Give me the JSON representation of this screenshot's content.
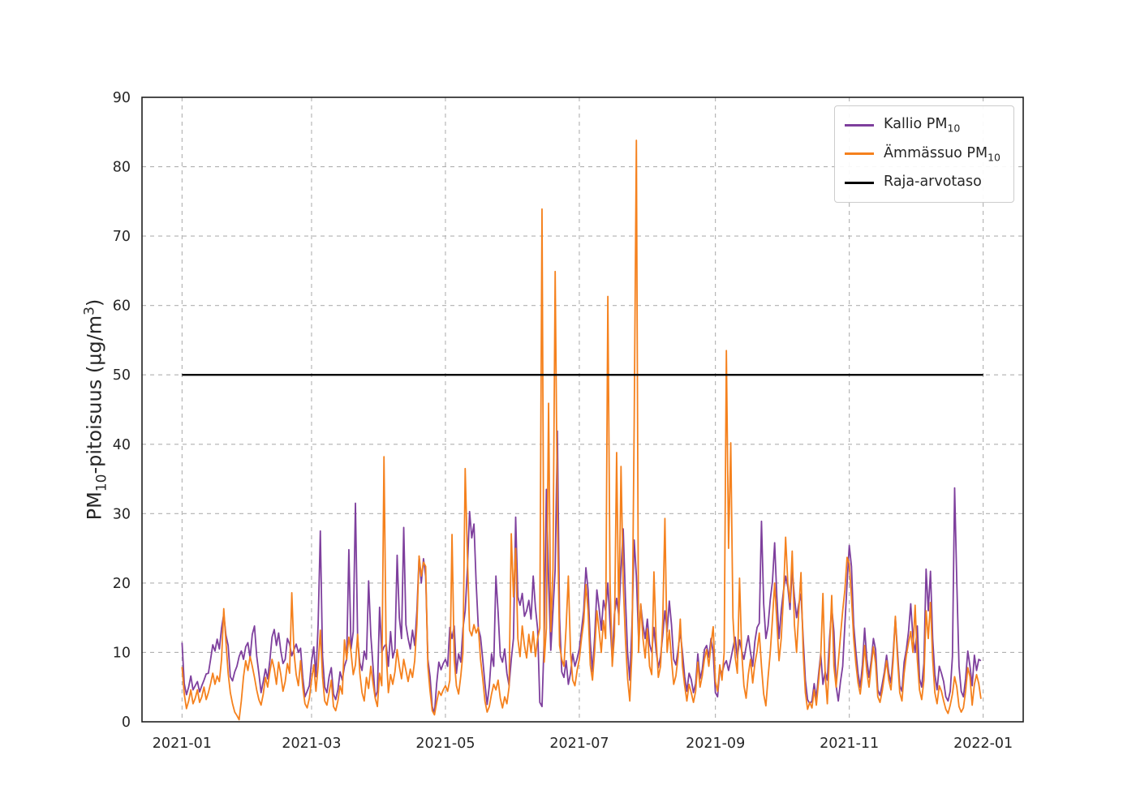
{
  "figure": {
    "background": "#ffffff"
  },
  "ylabel": {
    "pre": "PM",
    "sub": "10",
    "mid": "-pitoisuus (µg/m",
    "sup": "3",
    "post": ")"
  },
  "legend": {
    "position": "upper right",
    "items": [
      {
        "label_pre": "Kallio PM",
        "label_sub": "10",
        "color": "#7e3f9d"
      },
      {
        "label_pre": "Ämmässuo PM",
        "label_sub": "10",
        "color": "#f5811d"
      },
      {
        "label_pre": "Raja-arvotaso",
        "label_sub": "",
        "color": "#000000"
      }
    ]
  },
  "chart_data": {
    "type": "line",
    "title": "",
    "xlabel": "",
    "ylabel": "PM10-pitoisuus (µg/m3)",
    "grid": true,
    "grid_style": "dashed",
    "grid_color": "#b0b0b0",
    "spine_color": "#1f1f1f",
    "tick_color": "#262626",
    "ylim": [
      0,
      90
    ],
    "xlim_days": [
      -18.25,
      383.25
    ],
    "y_ticks": [
      0,
      10,
      20,
      30,
      40,
      50,
      60,
      70,
      80,
      90
    ],
    "x_ticks": [
      {
        "label": "2021-01",
        "day": 0
      },
      {
        "label": "2021-03",
        "day": 59
      },
      {
        "label": "2021-05",
        "day": 120
      },
      {
        "label": "2021-07",
        "day": 181
      },
      {
        "label": "2021-09",
        "day": 243
      },
      {
        "label": "2021-11",
        "day": 304
      },
      {
        "label": "2022-01",
        "day": 365
      }
    ],
    "x_unit": "days since 2021-01-01, daily values",
    "limit_line": {
      "name": "Raja-arvotaso",
      "value": 50,
      "color": "#000000",
      "x_span_days": [
        0,
        365
      ]
    },
    "series": [
      {
        "name": "Kallio PM10",
        "color": "#7e3f9d",
        "linewidth": 1.8,
        "values": [
          11.4,
          5.5,
          3.9,
          5.0,
          6.6,
          4.6,
          5.2,
          5.8,
          4.3,
          5.2,
          6.0,
          6.9,
          7.0,
          9.0,
          11.1,
          10.2,
          11.9,
          10.5,
          13.5,
          15.5,
          12.5,
          11.0,
          6.5,
          5.9,
          7.2,
          8.0,
          9.4,
          10.2,
          9.0,
          10.8,
          11.4,
          9.2,
          12.6,
          13.8,
          9.5,
          7.0,
          4.2,
          5.8,
          7.6,
          6.2,
          8.8,
          12.2,
          13.3,
          11.0,
          12.8,
          10.2,
          8.4,
          9.0,
          12.0,
          11.2,
          9.5,
          10.4,
          11.2,
          10.0,
          10.6,
          6.4,
          3.6,
          4.4,
          5.2,
          8.7,
          10.8,
          6.5,
          14.0,
          27.5,
          9.5,
          5.0,
          4.2,
          6.5,
          7.8,
          4.0,
          3.2,
          4.6,
          7.2,
          6.0,
          8.0,
          9.0,
          24.8,
          10.5,
          13.0,
          31.5,
          12.0,
          8.5,
          7.4,
          10.2,
          9.0,
          20.3,
          12.5,
          8.0,
          3.5,
          4.4,
          16.5,
          10.0,
          10.8,
          11.2,
          8.0,
          13.0,
          9.2,
          10.5,
          24.0,
          15.0,
          12.0,
          28.0,
          14.0,
          12.0,
          10.5,
          13.2,
          11.0,
          16.0,
          23.8,
          20.0,
          23.5,
          21.0,
          9.0,
          6.5,
          2.2,
          1.2,
          5.5,
          8.6,
          7.5,
          8.4,
          9.0,
          8.0,
          13.6,
          12.0,
          13.8,
          7.0,
          9.8,
          8.6,
          13.5,
          16.0,
          22.0,
          30.3,
          26.5,
          28.5,
          20.0,
          13.5,
          12.2,
          9.0,
          5.5,
          2.5,
          5.2,
          9.8,
          8.0,
          21.0,
          15.8,
          9.5,
          8.6,
          10.5,
          7.0,
          5.2,
          9.0,
          12.0,
          29.5,
          18.0,
          16.8,
          18.5,
          15.2,
          16.0,
          17.5,
          14.8,
          21.0,
          16.5,
          13.4,
          2.8,
          2.2,
          12.0,
          33.5,
          20.5,
          10.3,
          16.0,
          22.0,
          41.9,
          15.0,
          7.2,
          6.4,
          8.8,
          5.4,
          7.0,
          9.8,
          8.0,
          9.1,
          10.5,
          13.2,
          16.0,
          22.2,
          19.0,
          11.5,
          7.2,
          12.3,
          19.0,
          16.4,
          13.2,
          17.5,
          16.0,
          20.0,
          14.2,
          9.0,
          15.5,
          17.8,
          15.3,
          22.0,
          27.8,
          18.0,
          10.0,
          6.0,
          14.0,
          26.2,
          21.0,
          12.0,
          16.8,
          14.0,
          12.0,
          14.8,
          11.2,
          10.0,
          13.6,
          10.2,
          7.8,
          9.4,
          12.4,
          16.0,
          13.0,
          17.4,
          14.0,
          9.0,
          8.2,
          10.4,
          13.0,
          10.0,
          6.5,
          4.4,
          7.0,
          6.1,
          4.2,
          5.5,
          9.8,
          6.2,
          7.5,
          10.4,
          11.0,
          9.3,
          12.0,
          10.0,
          4.2,
          3.6,
          7.6,
          7.0,
          8.2,
          8.8,
          7.4,
          9.0,
          10.6,
          12.2,
          9.2,
          11.8,
          10.2,
          9.0,
          10.8,
          12.4,
          10.0,
          8.0,
          11.6,
          13.6,
          14.2,
          28.9,
          17.0,
          12.0,
          13.8,
          17.6,
          20.2,
          25.8,
          18.0,
          12.0,
          16.0,
          18.8,
          21.0,
          19.4,
          16.2,
          22.0,
          18.0,
          15.0,
          17.0,
          18.4,
          12.0,
          6.0,
          3.2,
          2.6,
          3.0,
          5.5,
          3.4,
          6.8,
          9.8,
          5.4,
          7.2,
          6.0,
          12.0,
          16.5,
          13.0,
          5.2,
          3.0,
          5.8,
          8.0,
          14.0,
          20.0,
          25.4,
          22.4,
          14.0,
          10.2,
          7.0,
          5.0,
          8.2,
          13.5,
          9.0,
          6.4,
          8.8,
          12.0,
          10.4,
          4.6,
          3.8,
          5.4,
          7.2,
          9.6,
          7.0,
          5.6,
          9.8,
          15.0,
          10.0,
          5.2,
          4.4,
          8.6,
          10.4,
          13.0,
          17.0,
          12.2,
          10.0,
          13.8,
          6.2,
          5.0,
          8.4,
          22.0,
          16.0,
          21.7,
          12.0,
          6.8,
          4.6,
          8.0,
          7.0,
          5.8,
          3.6,
          3.0,
          4.4,
          9.4,
          33.7,
          20.0,
          8.0,
          4.4,
          3.6,
          6.2,
          10.2,
          8.0,
          5.2,
          9.6,
          7.4,
          9.0,
          8.8
        ]
      },
      {
        "name": "Ämmässuo PM10",
        "color": "#f5811d",
        "linewidth": 1.8,
        "values": [
          7.9,
          4.0,
          1.9,
          3.0,
          4.6,
          2.6,
          3.4,
          4.6,
          2.8,
          3.6,
          5.0,
          3.2,
          4.2,
          5.5,
          7.0,
          5.4,
          6.6,
          5.8,
          9.0,
          16.3,
          11.5,
          7.0,
          4.2,
          2.6,
          1.4,
          0.9,
          0.3,
          3.0,
          6.5,
          8.8,
          7.4,
          9.4,
          8.0,
          6.4,
          4.6,
          3.2,
          2.4,
          4.0,
          6.4,
          5.0,
          7.2,
          9.0,
          7.6,
          5.4,
          8.6,
          6.8,
          4.4,
          5.8,
          8.4,
          7.0,
          18.6,
          10.0,
          6.8,
          5.2,
          8.8,
          5.0,
          2.6,
          2.0,
          3.4,
          6.0,
          8.2,
          4.4,
          8.0,
          13.2,
          6.5,
          3.0,
          2.4,
          4.2,
          6.0,
          2.2,
          1.6,
          3.0,
          5.2,
          4.0,
          11.8,
          9.0,
          12.2,
          10.0,
          6.8,
          8.2,
          12.6,
          7.0,
          4.2,
          3.0,
          6.4,
          4.8,
          8.0,
          5.6,
          3.4,
          2.2,
          7.0,
          5.2,
          38.2,
          10.0,
          4.2,
          6.8,
          5.4,
          7.2,
          10.4,
          8.0,
          6.2,
          9.0,
          7.4,
          5.8,
          7.6,
          6.4,
          8.8,
          14.0,
          23.9,
          21.0,
          23.0,
          22.4,
          8.0,
          4.4,
          1.6,
          1.0,
          2.8,
          4.4,
          3.8,
          4.6,
          5.2,
          4.4,
          6.0,
          27.0,
          9.0,
          5.2,
          4.0,
          6.6,
          10.0,
          36.5,
          24.0,
          13.2,
          12.4,
          14.0,
          12.8,
          13.6,
          9.0,
          6.2,
          3.0,
          1.4,
          2.2,
          4.0,
          5.4,
          4.6,
          6.0,
          3.4,
          2.0,
          3.6,
          2.6,
          5.0,
          27.1,
          18.0,
          25.0,
          12.0,
          9.4,
          13.8,
          11.0,
          9.2,
          12.6,
          10.0,
          13.0,
          9.4,
          12.0,
          13.5,
          73.9,
          8.6,
          13.5,
          45.9,
          13.0,
          22.0,
          64.9,
          30.0,
          11.0,
          9.0,
          8.0,
          13.7,
          21.0,
          10.0,
          6.0,
          5.2,
          7.4,
          9.0,
          12.0,
          14.4,
          19.8,
          16.0,
          8.2,
          6.0,
          10.2,
          16.0,
          13.2,
          10.0,
          14.6,
          12.0,
          61.3,
          20.0,
          8.0,
          12.4,
          38.8,
          14.0,
          36.8,
          20.0,
          12.0,
          6.2,
          3.0,
          10.0,
          42.9,
          83.8,
          10.0,
          17.0,
          12.0,
          9.2,
          13.4,
          8.0,
          6.8,
          21.6,
          12.0,
          6.4,
          8.0,
          14.4,
          29.3,
          10.0,
          13.2,
          9.0,
          5.4,
          6.6,
          9.4,
          14.8,
          8.0,
          5.2,
          3.0,
          5.4,
          4.2,
          2.8,
          4.4,
          8.6,
          5.0,
          6.6,
          9.0,
          10.4,
          8.0,
          11.2,
          13.7,
          5.8,
          4.4,
          8.2,
          6.0,
          10.0,
          53.5,
          25.0,
          40.2,
          15.0,
          9.4,
          7.0,
          20.7,
          10.0,
          5.2,
          3.4,
          6.8,
          9.0,
          5.6,
          8.4,
          10.2,
          12.8,
          8.0,
          4.0,
          2.3,
          6.4,
          10.0,
          14.8,
          20.0,
          14.4,
          8.8,
          12.0,
          18.0,
          26.6,
          20.0,
          17.2,
          24.6,
          14.0,
          10.0,
          16.0,
          21.5,
          10.0,
          4.2,
          1.8,
          2.8,
          2.0,
          4.6,
          2.4,
          5.8,
          9.4,
          18.5,
          7.0,
          2.6,
          10.0,
          18.2,
          8.0,
          5.0,
          8.6,
          12.4,
          16.0,
          19.0,
          23.7,
          22.8,
          18.0,
          12.0,
          8.4,
          5.6,
          4.0,
          6.8,
          11.0,
          7.2,
          5.0,
          8.0,
          10.8,
          8.4,
          3.6,
          2.8,
          4.4,
          6.6,
          8.8,
          6.0,
          4.6,
          8.8,
          15.2,
          9.0,
          4.2,
          3.0,
          7.0,
          9.6,
          11.4,
          13.0,
          10.0,
          16.8,
          9.0,
          4.6,
          3.2,
          6.0,
          16.0,
          12.0,
          17.2,
          9.0,
          4.2,
          2.6,
          5.2,
          4.4,
          3.0,
          1.8,
          1.2,
          2.4,
          4.0,
          6.5,
          5.0,
          2.2,
          1.4,
          2.0,
          4.4,
          7.8,
          6.5,
          2.4,
          5.4,
          6.8,
          5.5,
          3.3
        ]
      }
    ]
  }
}
